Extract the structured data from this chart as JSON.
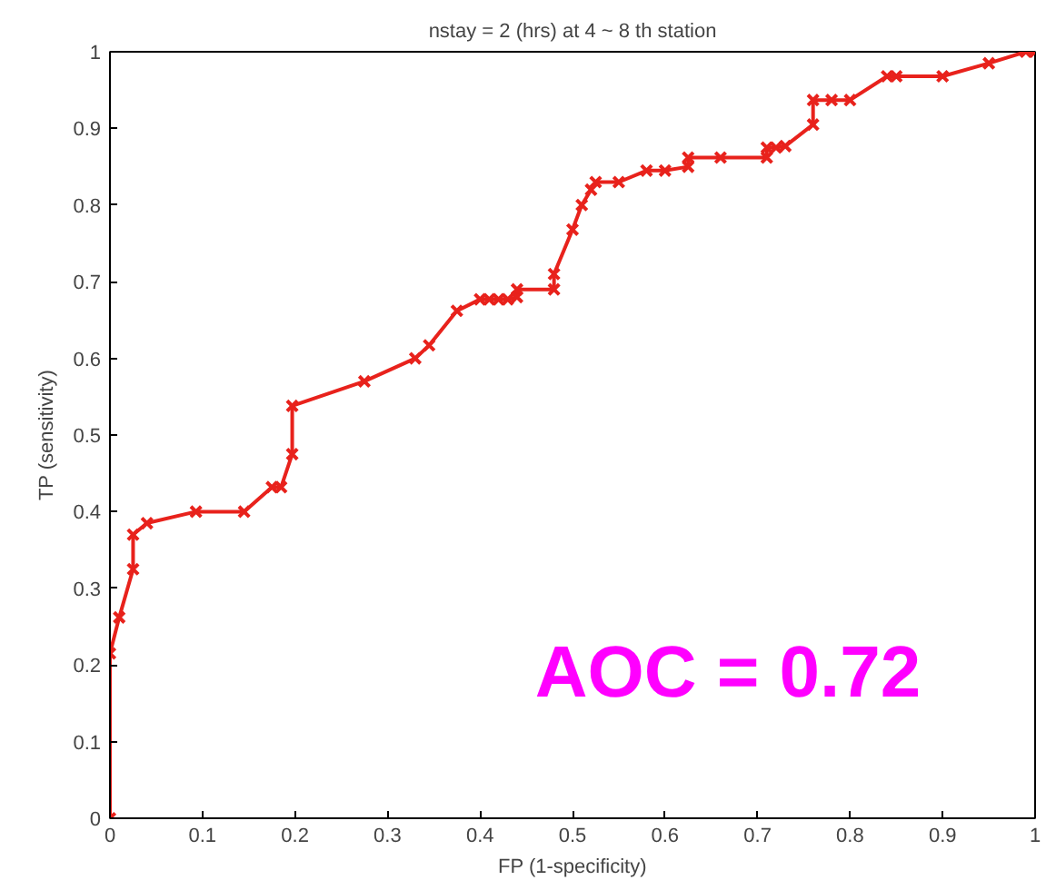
{
  "chart_data": {
    "type": "line",
    "title": "nstay = 2 (hrs) at 4 ~ 8 th station",
    "xlabel": "FP (1-specificity)",
    "ylabel": "TP (sensitivity)",
    "x": [
      0,
      0,
      0.01,
      0.025,
      0.025,
      0.04,
      0.093,
      0.145,
      0.175,
      0.185,
      0.197,
      0.197,
      0.275,
      0.33,
      0.345,
      0.375,
      0.4,
      0.41,
      0.42,
      0.43,
      0.44,
      0.44,
      0.48,
      0.48,
      0.5,
      0.51,
      0.52,
      0.525,
      0.55,
      0.58,
      0.6,
      0.625,
      0.625,
      0.66,
      0.71,
      0.71,
      0.72,
      0.73,
      0.76,
      0.76,
      0.78,
      0.8,
      0.84,
      0.85,
      0.9,
      0.95,
      0.99,
      1
    ],
    "series": [
      {
        "color": "#e8221c",
        "values": [
          0,
          0.215,
          0.262,
          0.325,
          0.37,
          0.385,
          0.4,
          0.4,
          0.432,
          0.432,
          0.475,
          0.538,
          0.57,
          0.6,
          0.617,
          0.662,
          0.677,
          0.677,
          0.677,
          0.677,
          0.68,
          0.69,
          0.69,
          0.71,
          0.768,
          0.8,
          0.82,
          0.83,
          0.83,
          0.845,
          0.845,
          0.85,
          0.862,
          0.862,
          0.862,
          0.875,
          0.875,
          0.877,
          0.905,
          0.937,
          0.937,
          0.937,
          0.968,
          0.968,
          0.968,
          0.985,
          1,
          1
        ]
      }
    ],
    "marker": "cross",
    "line_style": "solid",
    "xlim": [
      0,
      1
    ],
    "ylim": [
      0,
      1
    ],
    "xticks": [
      0,
      0.1,
      0.2,
      0.3,
      0.4,
      0.5,
      0.6,
      0.7,
      0.8,
      0.9,
      1
    ],
    "yticks": [
      0,
      0.1,
      0.2,
      0.3,
      0.4,
      0.5,
      0.6,
      0.7,
      0.8,
      0.9,
      1
    ],
    "grid": false,
    "annotations": [
      "AOC = 0.72"
    ]
  }
}
